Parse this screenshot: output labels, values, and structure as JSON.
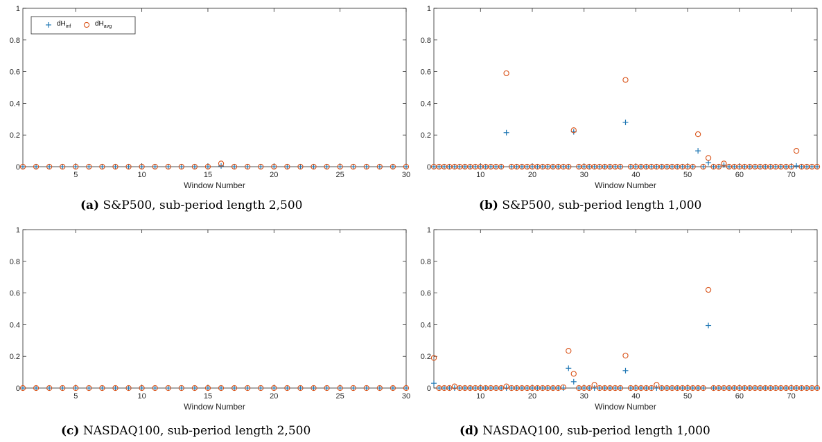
{
  "colors": {
    "inf": "#1f77b4",
    "avg": "#d95319"
  },
  "legend": {
    "inf_base": "dH",
    "inf_sub": "inf",
    "avg_base": "dH",
    "avg_sub": "avg"
  },
  "panels": [
    {
      "id": "a",
      "caption_tag": "(a)",
      "caption_text": "S&P500, sub-period length 2,500",
      "has_legend": true,
      "chart_data": {
        "type": "scatter",
        "xlabel": "Window Number",
        "xlim": [
          1,
          30
        ],
        "ylim": [
          0,
          1
        ],
        "xticks": [
          5,
          10,
          15,
          20,
          25,
          30
        ],
        "yticks": [
          0,
          0.2,
          0.4,
          0.6,
          0.8,
          1
        ],
        "ytick_labels": [
          "0",
          "0.2",
          "0.4",
          "0.6",
          "0.8",
          "1"
        ],
        "grid": false,
        "legend_position": "top-left",
        "series": [
          {
            "name": "dH_inf",
            "marker": "plus",
            "nonzero": [
              [
                16,
                0.005
              ]
            ]
          },
          {
            "name": "dH_avg",
            "marker": "circle",
            "nonzero": [
              [
                16,
                0.02
              ]
            ]
          }
        ]
      }
    },
    {
      "id": "b",
      "caption_tag": "(b)",
      "caption_text": "S&P500, sub-period length 1,000",
      "has_legend": false,
      "chart_data": {
        "type": "scatter",
        "xlabel": "Window Number",
        "xlim": [
          1,
          75
        ],
        "ylim": [
          0,
          1
        ],
        "xticks": [
          10,
          20,
          30,
          40,
          50,
          60,
          70
        ],
        "yticks": [
          0,
          0.2,
          0.4,
          0.6,
          0.8,
          1
        ],
        "ytick_labels": [
          "0",
          "0.2",
          "0.4",
          "0.6",
          "0.8",
          "1"
        ],
        "grid": false,
        "series": [
          {
            "name": "dH_inf",
            "marker": "plus",
            "nonzero": [
              [
                15,
                0.215
              ],
              [
                28,
                0.22
              ],
              [
                38,
                0.28
              ],
              [
                52,
                0.1
              ],
              [
                54,
                0.025
              ],
              [
                57,
                0.01
              ],
              [
                71,
                0.005
              ]
            ]
          },
          {
            "name": "dH_avg",
            "marker": "circle",
            "nonzero": [
              [
                15,
                0.59
              ],
              [
                28,
                0.23
              ],
              [
                38,
                0.548
              ],
              [
                52,
                0.205
              ],
              [
                54,
                0.055
              ],
              [
                57,
                0.02
              ],
              [
                71,
                0.1
              ]
            ]
          }
        ]
      }
    },
    {
      "id": "c",
      "caption_tag": "(c)",
      "caption_text": "NASDAQ100, sub-period length 2,500",
      "has_legend": false,
      "chart_data": {
        "type": "scatter",
        "xlabel": "Window Number",
        "xlim": [
          1,
          30
        ],
        "ylim": [
          0,
          1
        ],
        "xticks": [
          5,
          10,
          15,
          20,
          25,
          30
        ],
        "yticks": [
          0,
          0.2,
          0.4,
          0.6,
          0.8,
          1
        ],
        "ytick_labels": [
          "0",
          "0.2",
          "0.4",
          "0.6",
          "0.8",
          "1"
        ],
        "grid": false,
        "series": [
          {
            "name": "dH_inf",
            "marker": "plus",
            "nonzero": []
          },
          {
            "name": "dH_avg",
            "marker": "circle",
            "nonzero": []
          }
        ]
      }
    },
    {
      "id": "d",
      "caption_tag": "(d)",
      "caption_text": "NASDAQ100, sub-period length 1,000",
      "has_legend": false,
      "chart_data": {
        "type": "scatter",
        "xlabel": "Window Number",
        "xlim": [
          1,
          75
        ],
        "ylim": [
          0,
          1
        ],
        "xticks": [
          10,
          20,
          30,
          40,
          50,
          60,
          70
        ],
        "yticks": [
          0,
          0.2,
          0.4,
          0.6,
          0.8,
          1
        ],
        "ytick_labels": [
          "0",
          "0.2",
          "0.4",
          "0.6",
          "0.8",
          "1"
        ],
        "grid": false,
        "series": [
          {
            "name": "dH_inf",
            "marker": "plus",
            "nonzero": [
              [
                1,
                0.03
              ],
              [
                27,
                0.125
              ],
              [
                28,
                0.04
              ],
              [
                38,
                0.11
              ],
              [
                54,
                0.395
              ]
            ]
          },
          {
            "name": "dH_avg",
            "marker": "circle",
            "nonzero": [
              [
                1,
                0.19
              ],
              [
                5,
                0.01
              ],
              [
                15,
                0.01
              ],
              [
                26,
                0.005
              ],
              [
                27,
                0.235
              ],
              [
                28,
                0.09
              ],
              [
                32,
                0.02
              ],
              [
                38,
                0.205
              ],
              [
                44,
                0.02
              ],
              [
                54,
                0.62
              ]
            ]
          }
        ]
      }
    }
  ]
}
